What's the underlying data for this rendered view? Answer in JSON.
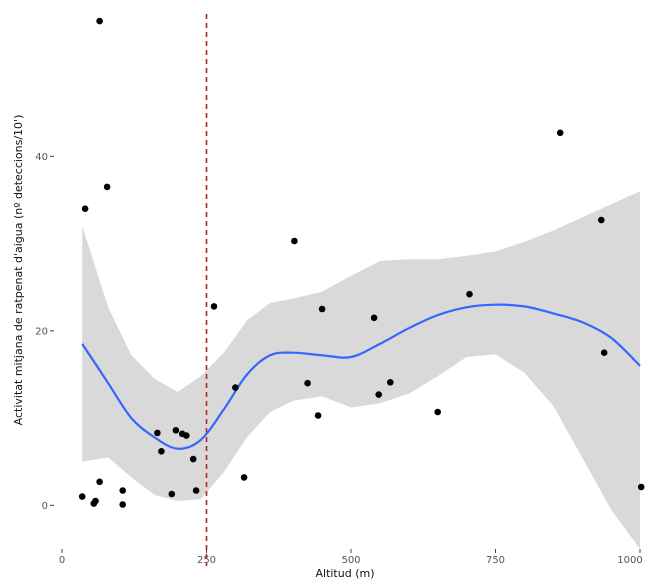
{
  "chart_data": {
    "type": "scatter",
    "title": "",
    "xlabel": "Altitud (m)",
    "ylabel": "Activitat mitjana de ratpenat d'aigua (nº deteccions/10')",
    "xlim": [
      0,
      1000
    ],
    "ylim": [
      -5,
      57
    ],
    "x_ticks": [
      {
        "value": 0,
        "label": "0"
      },
      {
        "value": 250,
        "label": "250"
      },
      {
        "value": 500,
        "label": "500"
      },
      {
        "value": 750,
        "label": "750"
      },
      {
        "value": 1000,
        "label": "1000"
      }
    ],
    "y_ticks": [
      {
        "value": 0,
        "label": "0"
      },
      {
        "value": 20,
        "label": "20"
      },
      {
        "value": 40,
        "label": "40"
      }
    ],
    "grid": false,
    "reference_line": {
      "x": 250,
      "color": "#b22222",
      "style": "dashed"
    },
    "points": [
      {
        "x": 35,
        "y": 1.0
      },
      {
        "x": 40,
        "y": 34.0
      },
      {
        "x": 55,
        "y": 0.2
      },
      {
        "x": 58,
        "y": 0.5
      },
      {
        "x": 65,
        "y": 2.7
      },
      {
        "x": 65,
        "y": 55.5
      },
      {
        "x": 78,
        "y": 36.5
      },
      {
        "x": 105,
        "y": 1.7
      },
      {
        "x": 105,
        "y": 0.1
      },
      {
        "x": 165,
        "y": 8.3
      },
      {
        "x": 172,
        "y": 6.2
      },
      {
        "x": 190,
        "y": 1.3
      },
      {
        "x": 197,
        "y": 8.6
      },
      {
        "x": 208,
        "y": 8.2
      },
      {
        "x": 215,
        "y": 8.0
      },
      {
        "x": 227,
        "y": 5.3
      },
      {
        "x": 232,
        "y": 1.7
      },
      {
        "x": 263,
        "y": 22.8
      },
      {
        "x": 300,
        "y": 13.5
      },
      {
        "x": 315,
        "y": 3.2
      },
      {
        "x": 402,
        "y": 30.3
      },
      {
        "x": 425,
        "y": 14.0
      },
      {
        "x": 443,
        "y": 10.3
      },
      {
        "x": 450,
        "y": 22.5
      },
      {
        "x": 540,
        "y": 21.5
      },
      {
        "x": 548,
        "y": 12.7
      },
      {
        "x": 568,
        "y": 14.1
      },
      {
        "x": 650,
        "y": 10.7
      },
      {
        "x": 705,
        "y": 24.2
      },
      {
        "x": 862,
        "y": 42.7
      },
      {
        "x": 933,
        "y": 32.7
      },
      {
        "x": 938,
        "y": 17.5
      },
      {
        "x": 1002,
        "y": 2.1
      }
    ],
    "smooth": {
      "color": "#3366ff",
      "x": [
        35,
        80,
        120,
        160,
        200,
        240,
        280,
        320,
        360,
        400,
        450,
        500,
        550,
        600,
        650,
        700,
        750,
        800,
        850,
        900,
        950,
        1000
      ],
      "y": [
        18.5,
        14.0,
        10.0,
        7.8,
        6.5,
        7.5,
        11.0,
        15.0,
        17.2,
        17.5,
        17.2,
        17.0,
        18.5,
        20.3,
        21.8,
        22.7,
        23.0,
        22.8,
        22.0,
        21.0,
        19.2,
        16.0
      ],
      "band_color": "#d9d9d9",
      "lower": [
        5.0,
        5.5,
        3.2,
        1.2,
        0.5,
        0.7,
        3.8,
        7.8,
        10.7,
        12.0,
        12.5,
        11.2,
        11.7,
        12.8,
        14.8,
        17.0,
        17.3,
        15.2,
        11.4,
        5.5,
        -0.5,
        -5.0
      ],
      "upper": [
        32.0,
        22.7,
        17.2,
        14.5,
        13.0,
        14.8,
        17.5,
        21.2,
        23.2,
        23.7,
        24.5,
        26.3,
        28.0,
        28.2,
        28.2,
        28.6,
        29.1,
        30.2,
        31.5,
        33.0,
        34.5,
        36.0
      ]
    }
  }
}
